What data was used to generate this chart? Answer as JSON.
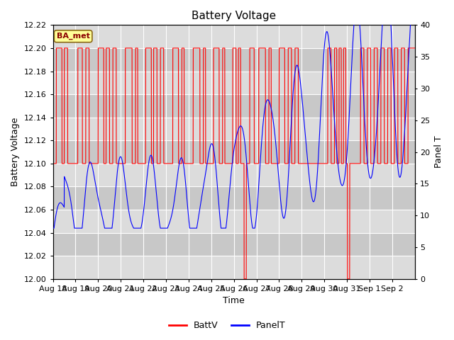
{
  "title": "Battery Voltage",
  "xlabel": "Time",
  "ylabel_left": "Battery Voltage",
  "ylabel_right": "Panel T",
  "ylim_left": [
    12.0,
    12.22
  ],
  "ylim_right": [
    0,
    40
  ],
  "yticks_left": [
    12.0,
    12.02,
    12.04,
    12.06,
    12.08,
    12.1,
    12.12,
    12.14,
    12.16,
    12.18,
    12.2,
    12.22
  ],
  "yticks_right": [
    0,
    5,
    10,
    15,
    20,
    25,
    30,
    35,
    40
  ],
  "xtick_labels": [
    "Aug 18",
    "Aug 19",
    "Aug 20",
    "Aug 21",
    "Aug 22",
    "Aug 23",
    "Aug 24",
    "Aug 25",
    "Aug 26",
    "Aug 27",
    "Aug 28",
    "Aug 29",
    "Aug 30",
    "Aug 31",
    "Sep 1",
    "Sep 2"
  ],
  "batt_color": "#FF0000",
  "panel_color": "#0000FF",
  "background_outer": "#FFFFFF",
  "background_band1": "#DCDCDC",
  "background_band2": "#C8C8C8",
  "legend_box_color": "#FFFF99",
  "legend_box_edge": "#8B6914",
  "annotation_text": "BA_met",
  "title_fontsize": 11,
  "axis_label_fontsize": 9,
  "tick_fontsize": 8
}
